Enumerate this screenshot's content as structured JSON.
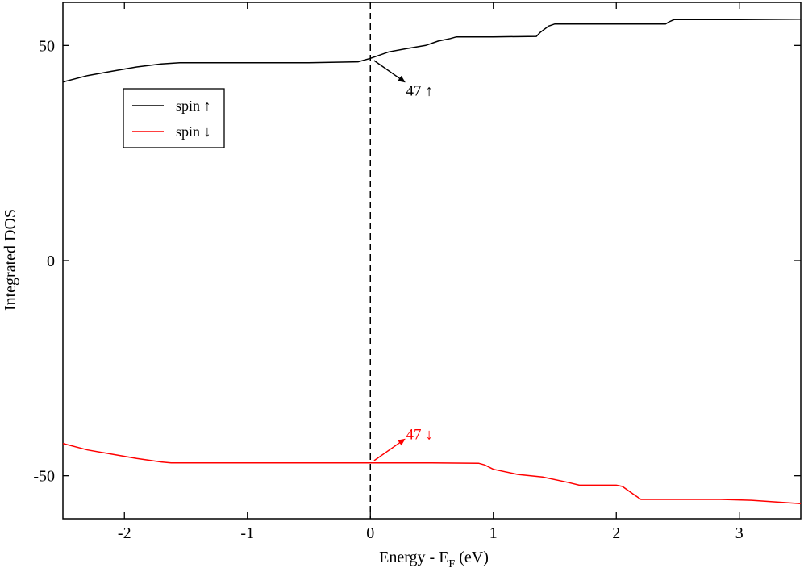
{
  "chart_data": {
    "type": "line",
    "xlabel_main": "Energy - E",
    "xlabel_sub": "F",
    "xlabel_tail": " (eV)",
    "ylabel": "Integrated DOS",
    "xlim": [
      -2.5,
      3.5
    ],
    "ylim": [
      -60,
      60
    ],
    "xticks": [
      -2,
      -1,
      0,
      1,
      2,
      3
    ],
    "xtick_labels": [
      "-2",
      "-1",
      "0",
      "1",
      "2",
      "3"
    ],
    "yticks": [
      -50,
      0,
      50
    ],
    "ytick_labels": [
      "-50",
      "0",
      "50"
    ],
    "grid": false,
    "fermi_line_x": 0,
    "legend": {
      "placement": "upper-left",
      "entries": [
        "spin ↑",
        "spin ↓"
      ]
    },
    "colors": {
      "up": "#000000",
      "down": "#ff0000"
    },
    "series": [
      {
        "name": "spin ↑",
        "color": "#000000",
        "x": [
          -2.5,
          -2.3,
          -2.1,
          -1.9,
          -1.7,
          -1.55,
          -1.0,
          -0.5,
          -0.1,
          0.0,
          0.15,
          0.3,
          0.45,
          0.55,
          0.65,
          0.7,
          1.0,
          1.35,
          1.38,
          1.45,
          1.5,
          2.0,
          2.4,
          2.43,
          2.47,
          3.0,
          3.5
        ],
        "y": [
          41.5,
          43,
          44,
          45,
          45.7,
          46,
          46,
          46,
          46.2,
          47,
          48.5,
          49.3,
          50,
          51,
          51.6,
          52,
          52,
          52.1,
          53,
          54.5,
          55,
          55,
          55,
          55.5,
          56,
          56,
          56.1
        ]
      },
      {
        "name": "spin ↓",
        "color": "#ff0000",
        "x": [
          -2.5,
          -2.3,
          -2.1,
          -1.9,
          -1.7,
          -1.62,
          -1.0,
          -0.5,
          0.0,
          0.5,
          0.88,
          0.93,
          1.0,
          1.2,
          1.4,
          1.6,
          1.7,
          2.0,
          2.05,
          2.15,
          2.2,
          2.5,
          2.85,
          3.1,
          3.5
        ],
        "y": [
          -42.5,
          -44,
          -45,
          -46,
          -46.8,
          -47,
          -47,
          -47,
          -47,
          -47,
          -47.1,
          -47.5,
          -48.5,
          -49.7,
          -50.3,
          -51.5,
          -52.2,
          -52.2,
          -52.5,
          -54.5,
          -55.5,
          -55.5,
          -55.5,
          -55.7,
          -56.5
        ]
      }
    ],
    "annotations": [
      {
        "text": "47 ↑",
        "color": "#000000",
        "x_from": 0.03,
        "y_from": 46.5,
        "x_to": 0.28,
        "y_to": 41.5,
        "text_x": 0.29,
        "text_y": 39.5
      },
      {
        "text": "47 ↓",
        "color": "#ff0000",
        "x_from": 0.03,
        "y_from": -46.5,
        "x_to": 0.28,
        "y_to": -41.5,
        "text_x": 0.29,
        "text_y": -41.5
      }
    ]
  }
}
